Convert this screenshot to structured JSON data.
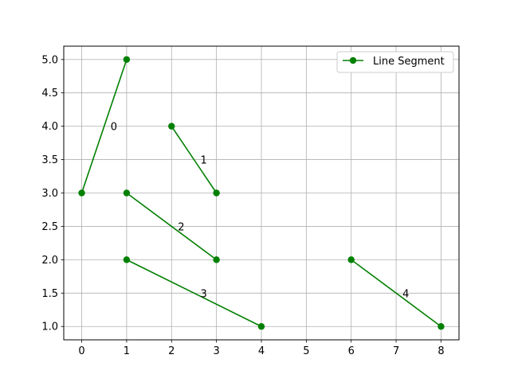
{
  "chart_data": {
    "type": "line",
    "title": "",
    "xlabel": "",
    "ylabel": "",
    "xlim": [
      -0.4,
      8.4
    ],
    "ylim": [
      0.8,
      5.2
    ],
    "xticks": [
      0,
      1,
      2,
      3,
      4,
      5,
      6,
      7,
      8
    ],
    "yticks": [
      1.0,
      1.5,
      2.0,
      2.5,
      3.0,
      3.5,
      4.0,
      4.5,
      5.0
    ],
    "xtick_labels": [
      "0",
      "1",
      "2",
      "3",
      "4",
      "5",
      "6",
      "7",
      "8"
    ],
    "ytick_labels": [
      "1.0",
      "1.5",
      "2.0",
      "2.5",
      "3.0",
      "3.5",
      "4.0",
      "4.5",
      "5.0"
    ],
    "grid": true,
    "legend": {
      "label": "Line Segment",
      "placement": "top-right"
    },
    "color": "#008000",
    "segments": [
      {
        "label": "0",
        "points": [
          [
            0,
            3
          ],
          [
            1,
            5
          ]
        ]
      },
      {
        "label": "1",
        "points": [
          [
            2,
            4
          ],
          [
            3,
            3
          ]
        ]
      },
      {
        "label": "2",
        "points": [
          [
            1,
            3
          ],
          [
            3,
            2
          ]
        ]
      },
      {
        "label": "3",
        "points": [
          [
            1,
            2
          ],
          [
            4,
            1
          ]
        ]
      },
      {
        "label": "4",
        "points": [
          [
            6,
            2
          ],
          [
            8,
            1
          ]
        ]
      }
    ]
  }
}
